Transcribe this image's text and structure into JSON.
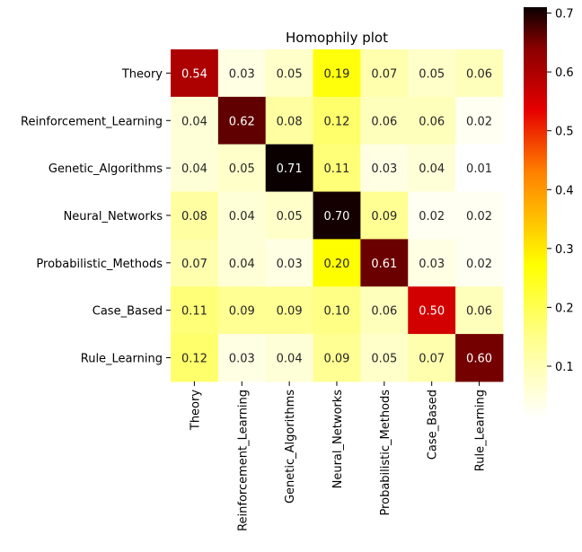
{
  "chart_data": {
    "type": "heatmap",
    "title": "Homophily plot",
    "xlabel": "",
    "ylabel": "",
    "rows": [
      "Theory",
      "Reinforcement_Learning",
      "Genetic_Algorithms",
      "Neural_Networks",
      "Probabilistic_Methods",
      "Case_Based",
      "Rule_Learning"
    ],
    "columns": [
      "Theory",
      "Reinforcement_Learning",
      "Genetic_Algorithms",
      "Neural_Networks",
      "Probabilistic_Methods",
      "Case_Based",
      "Rule_Learning"
    ],
    "values": [
      [
        0.54,
        0.03,
        0.05,
        0.19,
        0.07,
        0.05,
        0.06
      ],
      [
        0.04,
        0.62,
        0.08,
        0.12,
        0.06,
        0.06,
        0.02
      ],
      [
        0.04,
        0.05,
        0.71,
        0.11,
        0.03,
        0.04,
        0.01
      ],
      [
        0.08,
        0.04,
        0.05,
        0.7,
        0.09,
        0.02,
        0.02
      ],
      [
        0.07,
        0.04,
        0.03,
        0.2,
        0.61,
        0.03,
        0.02
      ],
      [
        0.11,
        0.09,
        0.09,
        0.1,
        0.06,
        0.5,
        0.06
      ],
      [
        0.12,
        0.03,
        0.04,
        0.09,
        0.05,
        0.07,
        0.6
      ]
    ],
    "colormap": "hot_r",
    "vmin": 0.01,
    "vmax": 0.71,
    "colorbar_ticks": [
      0.1,
      0.2,
      0.3,
      0.4,
      0.5,
      0.6,
      0.7
    ],
    "annotation_format": "0.00",
    "grid": false,
    "colorbar_position": "right"
  }
}
